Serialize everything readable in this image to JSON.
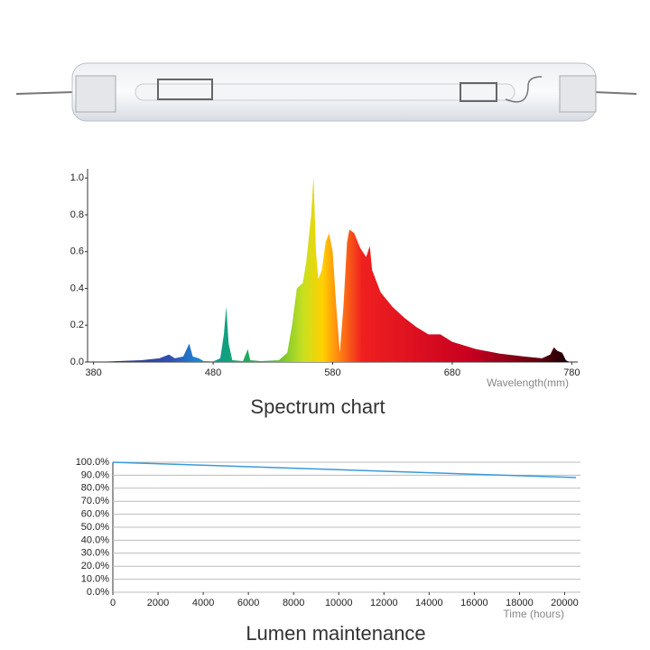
{
  "chart_data": [
    {
      "type": "area",
      "title": "Spectrum chart",
      "x_label": "Wavelength(mm)",
      "x": [
        380,
        400,
        420,
        435,
        443,
        448,
        455,
        460,
        463,
        468,
        472,
        480,
        486,
        489,
        491,
        493,
        496,
        505,
        509,
        511,
        520,
        535,
        542,
        546,
        550,
        555,
        558,
        562,
        564,
        566,
        568,
        571,
        574,
        577,
        580,
        583,
        586,
        589,
        592,
        594,
        598,
        603,
        608,
        611,
        613,
        620,
        630,
        640,
        650,
        660,
        670,
        680,
        700,
        720,
        740,
        755,
        762,
        765,
        768,
        772,
        775,
        778
      ],
      "values": [
        0,
        0.005,
        0.01,
        0.02,
        0.04,
        0.02,
        0.03,
        0.1,
        0.03,
        0.02,
        0.005,
        0.003,
        0.02,
        0.15,
        0.3,
        0.1,
        0.01,
        0.005,
        0.07,
        0.01,
        0.005,
        0.01,
        0.05,
        0.2,
        0.4,
        0.43,
        0.55,
        0.8,
        1.01,
        0.6,
        0.45,
        0.5,
        0.65,
        0.7,
        0.6,
        0.3,
        0.05,
        0.3,
        0.65,
        0.72,
        0.7,
        0.62,
        0.57,
        0.63,
        0.5,
        0.38,
        0.3,
        0.24,
        0.19,
        0.15,
        0.15,
        0.11,
        0.07,
        0.045,
        0.03,
        0.02,
        0.04,
        0.08,
        0.06,
        0.05,
        0.01,
        0
      ],
      "xlim": [
        375,
        785
      ],
      "xticks": [
        380,
        480,
        580,
        680,
        780
      ],
      "ylim": [
        0,
        1.05
      ],
      "yticks": [
        {
          "value": 0,
          "label": "0.0"
        },
        0.2,
        0.4,
        0.6,
        0.8,
        {
          "value": 1,
          "label": "1.0"
        }
      ],
      "grid": false
    },
    {
      "type": "line",
      "title": "Lumen maintenance",
      "x_label": "Time (hours)",
      "x": [
        0,
        20500
      ],
      "values": [
        100,
        88.2
      ],
      "color": "#3a9ad9",
      "xlim": [
        0,
        20700
      ],
      "xticks": [
        0,
        2000,
        4000,
        6000,
        8000,
        10000,
        12000,
        14000,
        16000,
        18000,
        20000
      ],
      "ylim": [
        0,
        100
      ],
      "yticks": [
        {
          "value": 0,
          "label": "0.0%"
        },
        {
          "value": 10,
          "label": "10.0%"
        },
        {
          "value": 20,
          "label": "20.0%"
        },
        {
          "value": 30,
          "label": "30.0%"
        },
        {
          "value": 40,
          "label": "40.0%"
        },
        {
          "value": 50,
          "label": "50.0%"
        },
        {
          "value": 60,
          "label": "60.0%"
        },
        {
          "value": 70,
          "label": "70.0%"
        },
        {
          "value": 80,
          "label": "80.0%"
        },
        {
          "value": 90,
          "label": "90.0%"
        },
        {
          "value": 100,
          "label": "100.0%"
        }
      ],
      "grid": true
    }
  ]
}
